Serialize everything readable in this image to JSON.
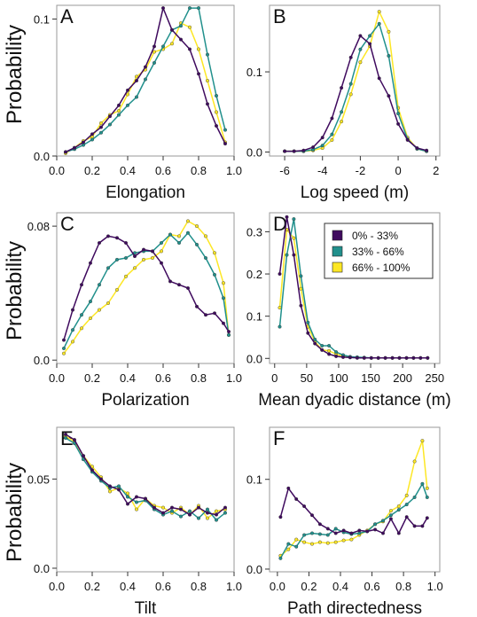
{
  "colors": {
    "series": [
      "#3f0a5e",
      "#21908c",
      "#fde725"
    ],
    "frame": "#9a9a9a"
  },
  "legend": {
    "items": [
      "0% - 33%",
      "33% - 66%",
      "66% - 100%"
    ]
  },
  "shared_ylabel": "Probability",
  "chart_data": [
    {
      "type": "line",
      "letter": "A",
      "xlabel": "Elongation",
      "ylabel": "Probability",
      "xlim": [
        0,
        1
      ],
      "ylim": [
        0,
        0.11
      ],
      "xticks": [
        0,
        0.2,
        0.4,
        0.6,
        0.8,
        1
      ],
      "xtick_labels": [
        "0.0",
        "0.2",
        "0.4",
        "0.6",
        "0.8",
        "1.0"
      ],
      "yticks": [
        0,
        0.1
      ],
      "ytick_labels": [
        "0.0",
        "0.1"
      ],
      "x": [
        0.05,
        0.1,
        0.15,
        0.2,
        0.25,
        0.3,
        0.35,
        0.4,
        0.45,
        0.5,
        0.55,
        0.6,
        0.65,
        0.7,
        0.75,
        0.8,
        0.85,
        0.9,
        0.95
      ],
      "series": [
        {
          "values": [
            0.003,
            0.006,
            0.01,
            0.016,
            0.021,
            0.029,
            0.037,
            0.048,
            0.055,
            0.065,
            0.08,
            0.108,
            0.092,
            0.085,
            0.078,
            0.06,
            0.038,
            0.022,
            0.009
          ]
        },
        {
          "values": [
            0.003,
            0.005,
            0.008,
            0.012,
            0.017,
            0.023,
            0.03,
            0.037,
            0.043,
            0.056,
            0.068,
            0.08,
            0.092,
            0.095,
            0.108,
            0.108,
            0.074,
            0.044,
            0.019
          ]
        },
        {
          "values": [
            0.002,
            0.006,
            0.011,
            0.014,
            0.024,
            0.03,
            0.033,
            0.045,
            0.058,
            0.063,
            0.076,
            0.078,
            0.082,
            0.097,
            0.094,
            0.078,
            0.055,
            0.032,
            0.01
          ]
        }
      ]
    },
    {
      "type": "line",
      "letter": "B",
      "xlabel": "Log speed (m)",
      "ylabel": "",
      "xlim": [
        -6.8,
        2.2
      ],
      "ylim": [
        -0.005,
        0.183
      ],
      "xticks": [
        -6,
        -4,
        -2,
        0,
        2
      ],
      "xtick_labels": [
        "-6",
        "-4",
        "-2",
        "0",
        "2"
      ],
      "yticks": [
        0,
        0.1
      ],
      "ytick_labels": [
        "0.0",
        "0.1"
      ],
      "x": [
        -6.0,
        -5.5,
        -5.0,
        -4.5,
        -4.0,
        -3.5,
        -3.0,
        -2.5,
        -2.0,
        -1.5,
        -1.0,
        -0.5,
        0.0,
        0.5,
        1.0,
        1.5
      ],
      "series": [
        {
          "values": [
            0.001,
            0.001,
            0.002,
            0.006,
            0.018,
            0.042,
            0.08,
            0.118,
            0.145,
            0.135,
            0.092,
            0.07,
            0.035,
            0.015,
            0.005,
            0.002
          ]
        },
        {
          "values": [
            0.001,
            0.001,
            0.001,
            0.003,
            0.008,
            0.022,
            0.05,
            0.085,
            0.128,
            0.145,
            0.16,
            0.12,
            0.048,
            0.016,
            0.004,
            0.001
          ]
        },
        {
          "values": [
            0.001,
            0.001,
            0.001,
            0.002,
            0.005,
            0.015,
            0.038,
            0.072,
            0.112,
            0.132,
            0.175,
            0.15,
            0.055,
            0.018,
            0.004,
            0.001
          ]
        }
      ]
    },
    {
      "type": "line",
      "letter": "C",
      "xlabel": "Polarization",
      "ylabel": "Probability",
      "xlim": [
        0,
        1
      ],
      "ylim": [
        -0.002,
        0.088
      ],
      "xticks": [
        0,
        0.2,
        0.4,
        0.6,
        0.8,
        1
      ],
      "xtick_labels": [
        "0.0",
        "0.2",
        "0.4",
        "0.6",
        "0.8",
        "1.0"
      ],
      "yticks": [
        0,
        0.08
      ],
      "ytick_labels": [
        "0.0",
        "0.08"
      ],
      "x": [
        0.04,
        0.09,
        0.14,
        0.19,
        0.24,
        0.29,
        0.34,
        0.39,
        0.44,
        0.49,
        0.54,
        0.59,
        0.64,
        0.69,
        0.74,
        0.79,
        0.84,
        0.89,
        0.94,
        0.97
      ],
      "series": [
        {
          "values": [
            0.012,
            0.03,
            0.045,
            0.058,
            0.07,
            0.074,
            0.073,
            0.07,
            0.062,
            0.066,
            0.065,
            0.058,
            0.047,
            0.045,
            0.043,
            0.032,
            0.027,
            0.028,
            0.022,
            0.017
          ]
        },
        {
          "values": [
            0.007,
            0.018,
            0.027,
            0.035,
            0.045,
            0.055,
            0.06,
            0.061,
            0.064,
            0.065,
            0.065,
            0.07,
            0.075,
            0.07,
            0.076,
            0.069,
            0.061,
            0.051,
            0.037,
            0.015
          ]
        },
        {
          "values": [
            0.004,
            0.011,
            0.019,
            0.025,
            0.03,
            0.034,
            0.042,
            0.05,
            0.055,
            0.06,
            0.061,
            0.065,
            0.075,
            0.074,
            0.083,
            0.08,
            0.074,
            0.064,
            0.046,
            0.015
          ]
        }
      ]
    },
    {
      "type": "line",
      "letter": "D",
      "xlabel": "Mean dyadic distance (m)",
      "ylabel": "",
      "xlim": [
        -8,
        258
      ],
      "ylim": [
        -0.012,
        0.345
      ],
      "xticks": [
        0,
        50,
        100,
        150,
        200,
        250
      ],
      "xtick_labels": [
        "0",
        "50",
        "100",
        "150",
        "200",
        "250"
      ],
      "yticks": [
        0,
        0.1,
        0.2,
        0.3
      ],
      "ytick_labels": [
        "0.0",
        "0.1",
        "0.2",
        "0.3"
      ],
      "x": [
        8,
        19,
        30,
        41,
        52,
        63,
        74,
        85,
        96,
        107,
        118,
        129,
        140,
        151,
        162,
        173,
        184,
        195,
        206,
        217,
        228,
        239
      ],
      "series": [
        {
          "values": [
            0.2,
            0.335,
            0.245,
            0.125,
            0.06,
            0.035,
            0.02,
            0.01,
            0.005,
            0.003,
            0.002,
            0.001,
            0.001,
            0.001,
            0.001,
            0.001,
            0.001,
            0.001,
            0.001,
            0.001,
            0.001,
            0.001
          ]
        },
        {
          "values": [
            0.075,
            0.245,
            0.33,
            0.195,
            0.085,
            0.045,
            0.03,
            0.03,
            0.015,
            0.008,
            0.004,
            0.003,
            0.002,
            0.001,
            0.001,
            0.001,
            0.001,
            0.001,
            0.001,
            0.001,
            0.001,
            0.001
          ]
        },
        {
          "values": [
            0.12,
            0.305,
            0.285,
            0.165,
            0.075,
            0.04,
            0.02,
            0.018,
            0.01,
            0.005,
            0.003,
            0.002,
            0.001,
            0.001,
            0.001,
            0.001,
            0.001,
            0.001,
            0.001,
            0.001,
            0.001,
            0.001
          ]
        }
      ]
    },
    {
      "type": "line",
      "letter": "E",
      "xlabel": "Tilt",
      "ylabel": "Probability",
      "xlim": [
        0,
        1
      ],
      "ylim": [
        -0.002,
        0.079
      ],
      "xticks": [
        0,
        0.2,
        0.4,
        0.6,
        0.8,
        1
      ],
      "xtick_labels": [
        "0.0",
        "0.2",
        "0.4",
        "0.6",
        "0.8",
        "1.0"
      ],
      "yticks": [
        0,
        0.05
      ],
      "ytick_labels": [
        "0.0",
        "0.05"
      ],
      "x": [
        0.05,
        0.1,
        0.15,
        0.2,
        0.25,
        0.3,
        0.35,
        0.4,
        0.45,
        0.5,
        0.55,
        0.6,
        0.65,
        0.7,
        0.75,
        0.8,
        0.85,
        0.9,
        0.95
      ],
      "series": [
        {
          "values": [
            0.075,
            0.072,
            0.063,
            0.055,
            0.05,
            0.046,
            0.044,
            0.036,
            0.04,
            0.039,
            0.034,
            0.031,
            0.034,
            0.033,
            0.03,
            0.034,
            0.031,
            0.03,
            0.034
          ]
        },
        {
          "values": [
            0.073,
            0.07,
            0.061,
            0.054,
            0.049,
            0.045,
            0.046,
            0.04,
            0.037,
            0.038,
            0.033,
            0.03,
            0.032,
            0.029,
            0.032,
            0.028,
            0.033,
            0.027,
            0.031
          ]
        },
        {
          "values": [
            0.074,
            0.071,
            0.063,
            0.057,
            0.051,
            0.043,
            0.045,
            0.042,
            0.033,
            0.039,
            0.035,
            0.034,
            0.031,
            0.034,
            0.03,
            0.035,
            0.028,
            0.032,
            0.033
          ]
        }
      ]
    },
    {
      "type": "line",
      "letter": "F",
      "xlabel": "Path directedness",
      "ylabel": "",
      "xlim": [
        -0.05,
        1.03
      ],
      "ylim": [
        -0.003,
        0.158
      ],
      "xticks": [
        0,
        0.2,
        0.4,
        0.6,
        0.8,
        1
      ],
      "xtick_labels": [
        "0.0",
        "0.2",
        "0.4",
        "0.6",
        "0.8",
        "1.0"
      ],
      "yticks": [
        0,
        0.1
      ],
      "ytick_labels": [
        "0.0",
        "0.1"
      ],
      "x": [
        0.02,
        0.07,
        0.12,
        0.17,
        0.22,
        0.27,
        0.32,
        0.37,
        0.42,
        0.47,
        0.52,
        0.57,
        0.62,
        0.67,
        0.72,
        0.77,
        0.82,
        0.87,
        0.92,
        0.95
      ],
      "series": [
        {
          "values": [
            0.058,
            0.09,
            0.078,
            0.07,
            0.06,
            0.05,
            0.045,
            0.04,
            0.043,
            0.04,
            0.043,
            0.042,
            0.044,
            0.04,
            0.056,
            0.04,
            0.058,
            0.048,
            0.048,
            0.057
          ]
        },
        {
          "values": [
            0.012,
            0.028,
            0.025,
            0.038,
            0.04,
            0.039,
            0.038,
            0.045,
            0.041,
            0.039,
            0.04,
            0.042,
            0.05,
            0.054,
            0.06,
            0.066,
            0.072,
            0.08,
            0.095,
            0.08
          ]
        },
        {
          "values": [
            0.015,
            0.022,
            0.033,
            0.03,
            0.028,
            0.03,
            0.029,
            0.03,
            0.032,
            0.033,
            0.038,
            0.043,
            0.05,
            0.053,
            0.065,
            0.07,
            0.082,
            0.12,
            0.143,
            0.09
          ]
        }
      ]
    }
  ]
}
